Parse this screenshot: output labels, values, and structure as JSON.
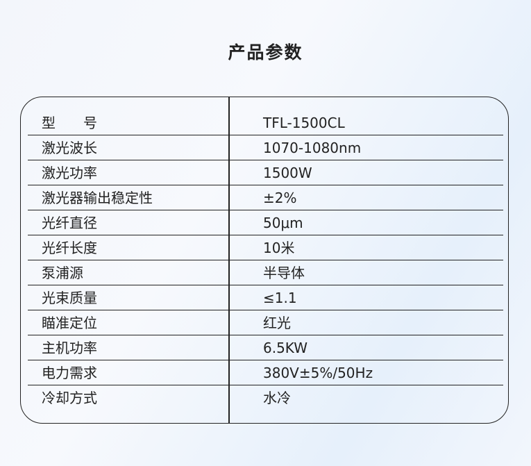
{
  "title": "产品参数",
  "specs": [
    {
      "label": "型　　号",
      "value": "TFL-1500CL"
    },
    {
      "label": "激光波长",
      "value": "1070-1080nm"
    },
    {
      "label": "激光功率",
      "value": "1500W"
    },
    {
      "label": "激光器输出稳定性",
      "value": "±2%"
    },
    {
      "label": "光纤直径",
      "value": "50μm"
    },
    {
      "label": "光纤长度",
      "value": "10米"
    },
    {
      "label": "泵浦源",
      "value": "半导体"
    },
    {
      "label": "光束质量",
      "value": "≤1.1"
    },
    {
      "label": "瞄准定位",
      "value": "红光"
    },
    {
      "label": "主机功率",
      "value": "6.5KW"
    },
    {
      "label": "电力需求",
      "value": "380V±5%/50Hz"
    },
    {
      "label": "冷却方式",
      "value": "水冷"
    }
  ]
}
